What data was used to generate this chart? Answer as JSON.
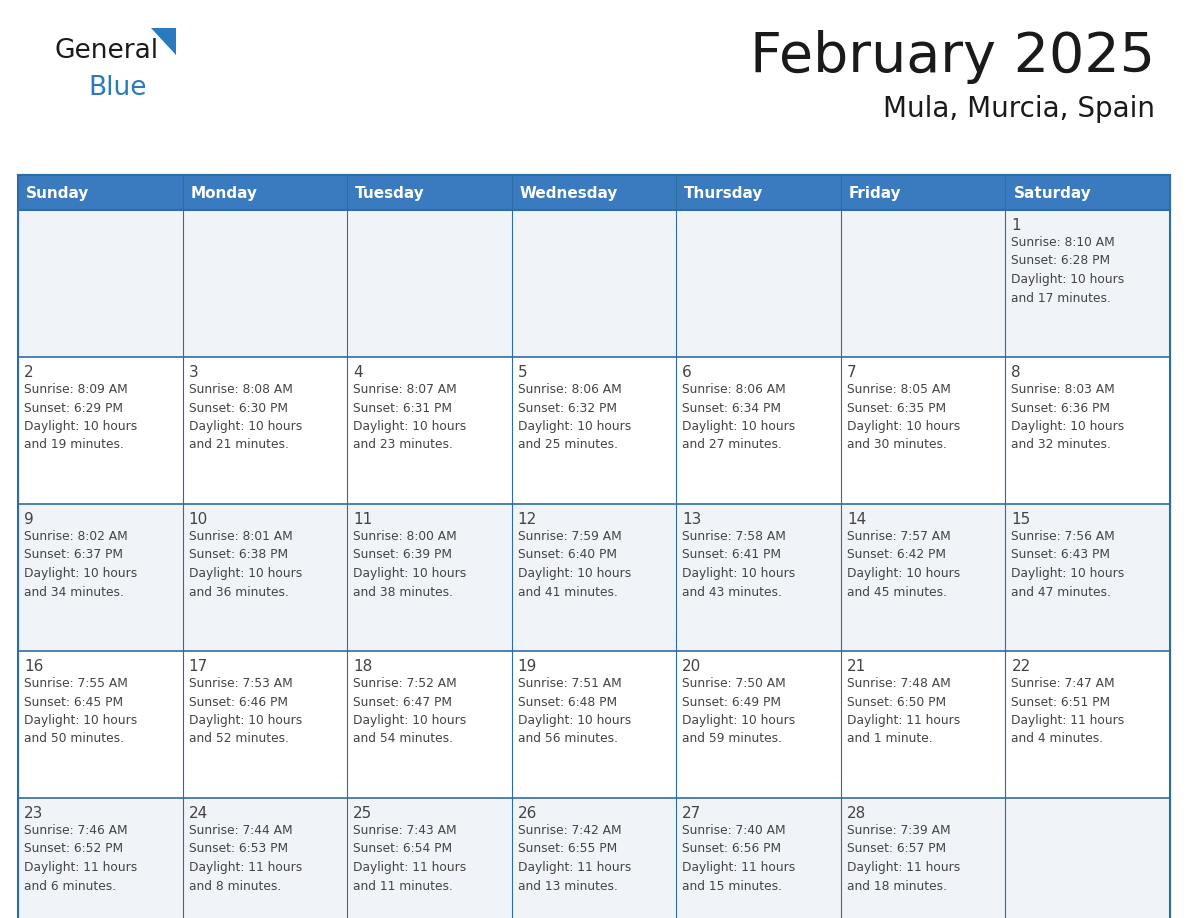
{
  "title": "February 2025",
  "subtitle": "Mula, Murcia, Spain",
  "header_bg": "#3a7abf",
  "header_text": "#ffffff",
  "cell_bg_odd": "#f0f4f8",
  "cell_bg_even": "#ffffff",
  "border_color": "#2e6da4",
  "text_color": "#444444",
  "days_of_week": [
    "Sunday",
    "Monday",
    "Tuesday",
    "Wednesday",
    "Thursday",
    "Friday",
    "Saturday"
  ],
  "logo_general_color": "#1a1a1a",
  "logo_blue_color": "#2a7abf",
  "logo_triangle_color": "#2a7abf",
  "title_color": "#1a1a1a",
  "weeks": [
    [
      {
        "day": "",
        "info": ""
      },
      {
        "day": "",
        "info": ""
      },
      {
        "day": "",
        "info": ""
      },
      {
        "day": "",
        "info": ""
      },
      {
        "day": "",
        "info": ""
      },
      {
        "day": "",
        "info": ""
      },
      {
        "day": "1",
        "info": "Sunrise: 8:10 AM\nSunset: 6:28 PM\nDaylight: 10 hours\nand 17 minutes."
      }
    ],
    [
      {
        "day": "2",
        "info": "Sunrise: 8:09 AM\nSunset: 6:29 PM\nDaylight: 10 hours\nand 19 minutes."
      },
      {
        "day": "3",
        "info": "Sunrise: 8:08 AM\nSunset: 6:30 PM\nDaylight: 10 hours\nand 21 minutes."
      },
      {
        "day": "4",
        "info": "Sunrise: 8:07 AM\nSunset: 6:31 PM\nDaylight: 10 hours\nand 23 minutes."
      },
      {
        "day": "5",
        "info": "Sunrise: 8:06 AM\nSunset: 6:32 PM\nDaylight: 10 hours\nand 25 minutes."
      },
      {
        "day": "6",
        "info": "Sunrise: 8:06 AM\nSunset: 6:34 PM\nDaylight: 10 hours\nand 27 minutes."
      },
      {
        "day": "7",
        "info": "Sunrise: 8:05 AM\nSunset: 6:35 PM\nDaylight: 10 hours\nand 30 minutes."
      },
      {
        "day": "8",
        "info": "Sunrise: 8:03 AM\nSunset: 6:36 PM\nDaylight: 10 hours\nand 32 minutes."
      }
    ],
    [
      {
        "day": "9",
        "info": "Sunrise: 8:02 AM\nSunset: 6:37 PM\nDaylight: 10 hours\nand 34 minutes."
      },
      {
        "day": "10",
        "info": "Sunrise: 8:01 AM\nSunset: 6:38 PM\nDaylight: 10 hours\nand 36 minutes."
      },
      {
        "day": "11",
        "info": "Sunrise: 8:00 AM\nSunset: 6:39 PM\nDaylight: 10 hours\nand 38 minutes."
      },
      {
        "day": "12",
        "info": "Sunrise: 7:59 AM\nSunset: 6:40 PM\nDaylight: 10 hours\nand 41 minutes."
      },
      {
        "day": "13",
        "info": "Sunrise: 7:58 AM\nSunset: 6:41 PM\nDaylight: 10 hours\nand 43 minutes."
      },
      {
        "day": "14",
        "info": "Sunrise: 7:57 AM\nSunset: 6:42 PM\nDaylight: 10 hours\nand 45 minutes."
      },
      {
        "day": "15",
        "info": "Sunrise: 7:56 AM\nSunset: 6:43 PM\nDaylight: 10 hours\nand 47 minutes."
      }
    ],
    [
      {
        "day": "16",
        "info": "Sunrise: 7:55 AM\nSunset: 6:45 PM\nDaylight: 10 hours\nand 50 minutes."
      },
      {
        "day": "17",
        "info": "Sunrise: 7:53 AM\nSunset: 6:46 PM\nDaylight: 10 hours\nand 52 minutes."
      },
      {
        "day": "18",
        "info": "Sunrise: 7:52 AM\nSunset: 6:47 PM\nDaylight: 10 hours\nand 54 minutes."
      },
      {
        "day": "19",
        "info": "Sunrise: 7:51 AM\nSunset: 6:48 PM\nDaylight: 10 hours\nand 56 minutes."
      },
      {
        "day": "20",
        "info": "Sunrise: 7:50 AM\nSunset: 6:49 PM\nDaylight: 10 hours\nand 59 minutes."
      },
      {
        "day": "21",
        "info": "Sunrise: 7:48 AM\nSunset: 6:50 PM\nDaylight: 11 hours\nand 1 minute."
      },
      {
        "day": "22",
        "info": "Sunrise: 7:47 AM\nSunset: 6:51 PM\nDaylight: 11 hours\nand 4 minutes."
      }
    ],
    [
      {
        "day": "23",
        "info": "Sunrise: 7:46 AM\nSunset: 6:52 PM\nDaylight: 11 hours\nand 6 minutes."
      },
      {
        "day": "24",
        "info": "Sunrise: 7:44 AM\nSunset: 6:53 PM\nDaylight: 11 hours\nand 8 minutes."
      },
      {
        "day": "25",
        "info": "Sunrise: 7:43 AM\nSunset: 6:54 PM\nDaylight: 11 hours\nand 11 minutes."
      },
      {
        "day": "26",
        "info": "Sunrise: 7:42 AM\nSunset: 6:55 PM\nDaylight: 11 hours\nand 13 minutes."
      },
      {
        "day": "27",
        "info": "Sunrise: 7:40 AM\nSunset: 6:56 PM\nDaylight: 11 hours\nand 15 minutes."
      },
      {
        "day": "28",
        "info": "Sunrise: 7:39 AM\nSunset: 6:57 PM\nDaylight: 11 hours\nand 18 minutes."
      },
      {
        "day": "",
        "info": ""
      }
    ]
  ]
}
